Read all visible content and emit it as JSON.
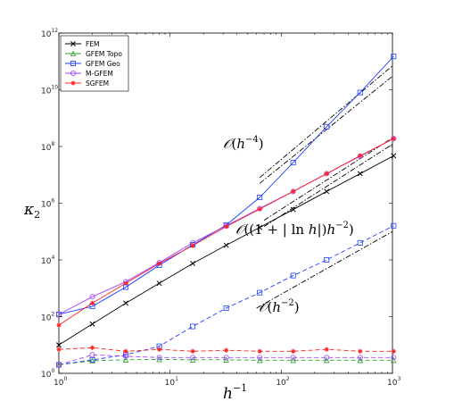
{
  "chart_data": {
    "type": "line",
    "xscale": "log",
    "yscale": "log",
    "xlim": [
      1,
      1000
    ],
    "ylim": [
      1,
      1000000000000
    ],
    "xlabel": "h^{-1}",
    "ylabel": "κ_2",
    "x_ticks": [
      {
        "base": "10",
        "exp": "0",
        "value": 1
      },
      {
        "base": "10",
        "exp": "1",
        "value": 10
      },
      {
        "base": "10",
        "exp": "2",
        "value": 100
      },
      {
        "base": "10",
        "exp": "3",
        "value": 1000
      }
    ],
    "y_ticks": [
      {
        "base": "10",
        "exp": "0",
        "value": 1
      },
      {
        "base": "10",
        "exp": "2",
        "value": 100
      },
      {
        "base": "10",
        "exp": "4",
        "value": 10000
      },
      {
        "base": "10",
        "exp": "6",
        "value": 1000000
      },
      {
        "base": "10",
        "exp": "8",
        "value": 100000000
      },
      {
        "base": "10",
        "exp": "10",
        "value": 10000000000
      },
      {
        "base": "10",
        "exp": "12",
        "value": 1000000000000
      }
    ],
    "grid": false,
    "legend_position": "top-left",
    "x": [
      1,
      2,
      4,
      8,
      16,
      32,
      64,
      128,
      256,
      512,
      1024
    ],
    "series": [
      {
        "name": "FEM",
        "color": "#000000",
        "marker": "x",
        "style": "solid",
        "values": [
          10,
          55,
          300,
          1500,
          7500,
          33000,
          140000,
          600000,
          2600000,
          11000000,
          47000000
        ]
      },
      {
        "name": "GFEM Topo",
        "color": "#2ca02c",
        "marker": "triangle",
        "style": "dashed",
        "values": [
          2,
          2.8,
          3.0,
          3.1,
          3.0,
          3.0,
          2.9,
          2.9,
          2.9,
          2.9,
          2.9
        ]
      },
      {
        "name": "GFEM Geo",
        "color": "#1f3fff",
        "marker": "square",
        "style": "solid",
        "values": [
          120,
          230,
          1100,
          6500,
          34000,
          170000,
          1600000,
          27000000,
          500000000,
          8000000000,
          150000000000
        ]
      },
      {
        "name": "GFEM Geo",
        "color": "#1f3fff",
        "marker": "square",
        "style": "dashed",
        "values": [
          2,
          3.0,
          4.5,
          9,
          45,
          200,
          700,
          2800,
          10000,
          40000,
          160000
        ]
      },
      {
        "name": "M-GFEM",
        "color": "#a040ff",
        "marker": "circle",
        "style": "dashed",
        "values": [
          2,
          4.5,
          4.0,
          3.6,
          3.6,
          3.6,
          3.6,
          3.6,
          3.6,
          3.6,
          3.6
        ]
      },
      {
        "name": "M-GFEM",
        "color": "#a040ff",
        "marker": "circle",
        "style": "solid",
        "values": [
          120,
          500,
          1700,
          8000,
          40000,
          160000,
          650000,
          2600000,
          11000000,
          45000000,
          190000000
        ]
      },
      {
        "name": "SGFEM",
        "color": "#ff2020",
        "marker": "asterisk",
        "style": "dashed",
        "values": [
          7,
          8,
          6,
          7,
          6,
          6.5,
          6,
          6,
          7,
          6,
          6
        ]
      },
      {
        "name": "SGFEM",
        "color": "#ff2020",
        "marker": "asterisk",
        "style": "solid",
        "values": [
          50,
          300,
          1500,
          7500,
          32000,
          150000,
          620000,
          2600000,
          11000000,
          47000000,
          190000000
        ]
      }
    ],
    "reference_lines": [
      {
        "label": "O(h^-4)",
        "points": [
          [
            64,
            8000000
          ],
          [
            1000,
            70000000000
          ]
        ]
      },
      {
        "label": "O(h^-4)",
        "points": [
          [
            64,
            5000000
          ],
          [
            1000,
            30000000000
          ]
        ]
      },
      {
        "label": "O((1+|ln h|)h^-2)",
        "points": [
          [
            70,
            250000
          ],
          [
            1000,
            200000000
          ]
        ]
      },
      {
        "label": "O((1+|ln h|)h^-2)",
        "points": [
          [
            70,
            150000
          ],
          [
            1000,
            120000000
          ]
        ]
      },
      {
        "label": "O(h^-2)",
        "points": [
          [
            60,
            200
          ],
          [
            1000,
            100000
          ]
        ]
      }
    ],
    "annotations": [
      {
        "text": "O(h^-4)"
      },
      {
        "text": "O((1+|ln h|)h^-2)"
      },
      {
        "text": "O(h^-2)"
      }
    ]
  }
}
